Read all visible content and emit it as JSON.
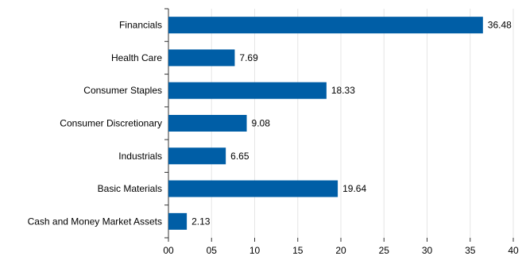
{
  "chart_data": {
    "type": "bar",
    "orientation": "horizontal",
    "categories": [
      "Financials",
      "Health Care",
      "Consumer Staples",
      "Consumer Discretionary",
      "Industrials",
      "Basic Materials",
      "Cash and Money Market Assets"
    ],
    "values": [
      36.48,
      7.69,
      18.33,
      9.08,
      6.65,
      19.64,
      2.13
    ],
    "value_labels": [
      "36.48",
      "7.69",
      "18.33",
      "9.08",
      "6.65",
      "19.64",
      "2.13"
    ],
    "xlim": [
      0,
      40
    ],
    "x_ticks": [
      "00",
      "05",
      "10",
      "15",
      "20",
      "25",
      "30",
      "35",
      "40"
    ],
    "grid": "vertical",
    "bar_color": "#005ea6",
    "grid_color": "#e6e6e6"
  }
}
